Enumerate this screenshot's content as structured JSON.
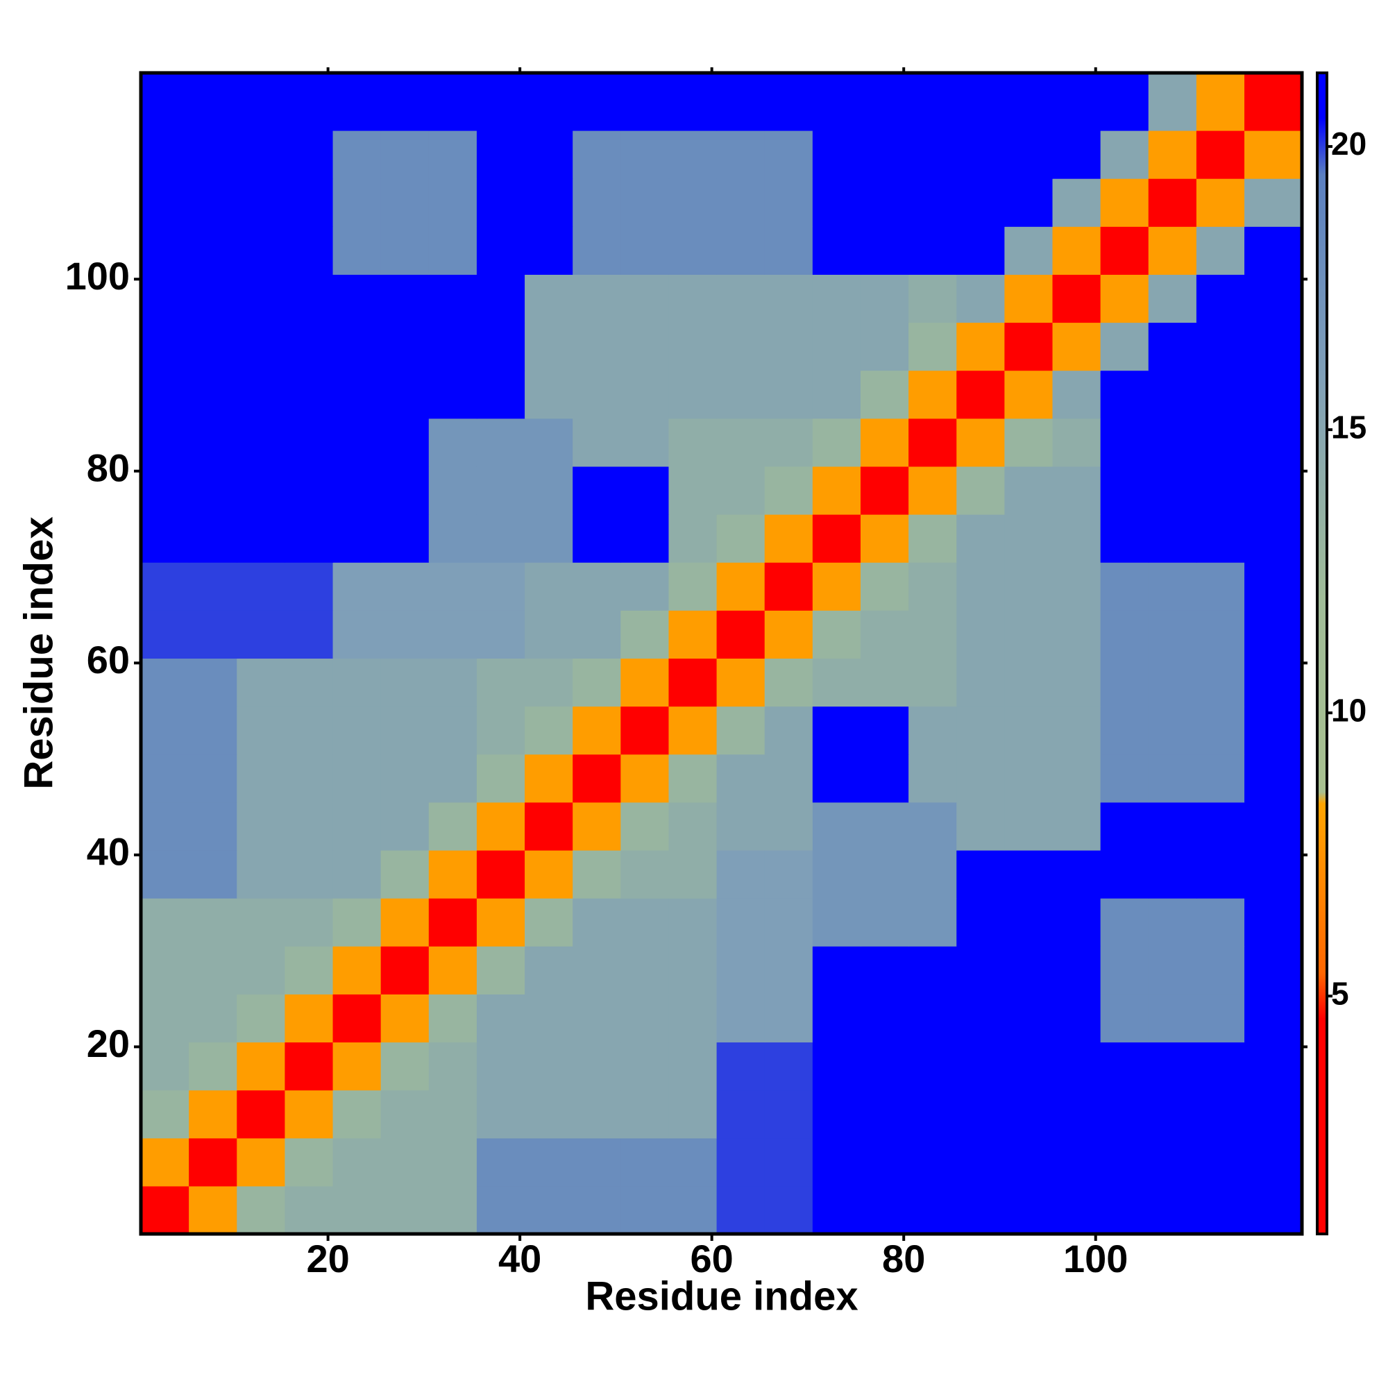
{
  "chart_data": {
    "type": "heatmap",
    "xlabel": "Residue index",
    "ylabel": "Residue index",
    "xbins": [
      0.5,
      5.5,
      10.5,
      15.5,
      20.5,
      25.5,
      30.5,
      35.5,
      40.5,
      45.5,
      50.5,
      55.5,
      60.5,
      65.5,
      70.5,
      75.5,
      80.5,
      85.5,
      90.5,
      95.5,
      100.5,
      105.5,
      110.5,
      115.5,
      121.5
    ],
    "ybins": [
      0.5,
      5.5,
      10.5,
      15.5,
      20.5,
      25.5,
      30.5,
      35.5,
      40.5,
      45.5,
      50.5,
      55.5,
      60.5,
      65.5,
      70.5,
      75.5,
      80.5,
      85.5,
      90.5,
      95.5,
      100.5,
      105.5,
      110.5,
      115.5,
      121.5
    ],
    "xlim": [
      0.5,
      121.5
    ],
    "ylim": [
      0.5,
      121.5
    ],
    "xticks": [
      20,
      40,
      60,
      80,
      100
    ],
    "yticks": [
      20,
      40,
      60,
      80,
      100
    ],
    "clim": [
      0.8,
      21.3
    ],
    "cticks": [
      5,
      10,
      15,
      20
    ],
    "colorscale": [
      [
        0.8,
        "#ff0000"
      ],
      [
        4.6,
        "#ff0000"
      ],
      [
        5.4,
        "#ff6600"
      ],
      [
        8.4,
        "#ffa500"
      ],
      [
        8.6,
        "#a8c090"
      ],
      [
        12,
        "#a0bc98"
      ],
      [
        16,
        "#7f9fb8"
      ],
      [
        19.5,
        "#5a7fc0"
      ],
      [
        20.5,
        "#0000ff"
      ],
      [
        21.3,
        "#0000ff"
      ]
    ],
    "z": [
      [
        3,
        8,
        13,
        14,
        14,
        14,
        14,
        18,
        18,
        18,
        18,
        18,
        20,
        20,
        21,
        21,
        21,
        21,
        21,
        21,
        21,
        21,
        21,
        21
      ],
      [
        8,
        3,
        8,
        13,
        14,
        14,
        14,
        18,
        18,
        18,
        18,
        18,
        20,
        20,
        21,
        21,
        21,
        21,
        21,
        21,
        21,
        21,
        21,
        21
      ],
      [
        13,
        8,
        3,
        8,
        13,
        14,
        14,
        15,
        15,
        15,
        15,
        15,
        20,
        20,
        21,
        21,
        21,
        21,
        21,
        21,
        21,
        21,
        21,
        21
      ],
      [
        14,
        13,
        8,
        3,
        8,
        13,
        14,
        15,
        15,
        15,
        15,
        15,
        20,
        20,
        21,
        21,
        21,
        21,
        21,
        21,
        21,
        21,
        21,
        21
      ],
      [
        14,
        14,
        13,
        8,
        3,
        8,
        13,
        15,
        15,
        15,
        15,
        15,
        16,
        16,
        21,
        21,
        21,
        21,
        21,
        21,
        18,
        18,
        18,
        21
      ],
      [
        14,
        14,
        14,
        13,
        8,
        3,
        8,
        13,
        15,
        15,
        15,
        15,
        16,
        16,
        21,
        21,
        21,
        21,
        21,
        21,
        18,
        18,
        18,
        21
      ],
      [
        14,
        14,
        14,
        14,
        13,
        8,
        3,
        8,
        13,
        15,
        15,
        15,
        16,
        16,
        17,
        17,
        17,
        21,
        21,
        21,
        18,
        18,
        18,
        21
      ],
      [
        18,
        18,
        15,
        15,
        15,
        13,
        8,
        3,
        8,
        13,
        14,
        14,
        16,
        16,
        17,
        17,
        17,
        21,
        21,
        21,
        21,
        21,
        21,
        21
      ],
      [
        18,
        18,
        15,
        15,
        15,
        15,
        13,
        8,
        3,
        8,
        13,
        14,
        15,
        15,
        17,
        17,
        17,
        15,
        15,
        15,
        21,
        21,
        21,
        21
      ],
      [
        18,
        18,
        15,
        15,
        15,
        15,
        15,
        13,
        8,
        3,
        8,
        13,
        15,
        15,
        21,
        21,
        15,
        15,
        15,
        15,
        18,
        18,
        18,
        21
      ],
      [
        18,
        18,
        15,
        15,
        15,
        15,
        15,
        14,
        13,
        8,
        3,
        8,
        13,
        15,
        21,
        21,
        15,
        15,
        15,
        15,
        18,
        18,
        18,
        21
      ],
      [
        18,
        18,
        15,
        15,
        15,
        15,
        15,
        14,
        14,
        13,
        8,
        3,
        8,
        13,
        14,
        14,
        14,
        15,
        15,
        15,
        18,
        18,
        18,
        21
      ],
      [
        20,
        20,
        20,
        20,
        16,
        16,
        16,
        16,
        15,
        15,
        13,
        8,
        3,
        8,
        13,
        14,
        14,
        15,
        15,
        15,
        18,
        18,
        18,
        21
      ],
      [
        20,
        20,
        20,
        20,
        16,
        16,
        16,
        16,
        15,
        15,
        15,
        13,
        8,
        3,
        8,
        13,
        14,
        15,
        15,
        15,
        18,
        18,
        18,
        21
      ],
      [
        21,
        21,
        21,
        21,
        21,
        21,
        17,
        17,
        17,
        21,
        21,
        14,
        13,
        8,
        3,
        8,
        13,
        15,
        15,
        15,
        21,
        21,
        21,
        21
      ],
      [
        21,
        21,
        21,
        21,
        21,
        21,
        17,
        17,
        17,
        21,
        21,
        14,
        14,
        13,
        8,
        3,
        8,
        13,
        15,
        15,
        21,
        21,
        21,
        21
      ],
      [
        21,
        21,
        21,
        21,
        21,
        21,
        17,
        17,
        17,
        15,
        15,
        14,
        14,
        14,
        13,
        8,
        3,
        8,
        13,
        14,
        21,
        21,
        21,
        21
      ],
      [
        21,
        21,
        21,
        21,
        21,
        21,
        21,
        21,
        15,
        15,
        15,
        15,
        15,
        15,
        15,
        13,
        8,
        3,
        8,
        15,
        21,
        21,
        21,
        21
      ],
      [
        21,
        21,
        21,
        21,
        21,
        21,
        21,
        21,
        15,
        15,
        15,
        15,
        15,
        15,
        15,
        15,
        13,
        8,
        3,
        8,
        15,
        21,
        21,
        21
      ],
      [
        21,
        21,
        21,
        21,
        21,
        21,
        21,
        21,
        15,
        15,
        15,
        15,
        15,
        15,
        15,
        15,
        14,
        15,
        8,
        3,
        8,
        15,
        21,
        21
      ],
      [
        21,
        21,
        21,
        21,
        18,
        18,
        18,
        21,
        21,
        18,
        18,
        18,
        18,
        18,
        21,
        21,
        21,
        21,
        15,
        8,
        3,
        8,
        15,
        21
      ],
      [
        21,
        21,
        21,
        21,
        18,
        18,
        18,
        21,
        21,
        18,
        18,
        18,
        18,
        18,
        21,
        21,
        21,
        21,
        21,
        15,
        8,
        3,
        8,
        15
      ],
      [
        21,
        21,
        21,
        21,
        18,
        18,
        18,
        21,
        21,
        18,
        18,
        18,
        18,
        18,
        21,
        21,
        21,
        21,
        21,
        21,
        15,
        8,
        3,
        8
      ],
      [
        21,
        21,
        21,
        21,
        21,
        21,
        21,
        21,
        21,
        21,
        21,
        21,
        21,
        21,
        21,
        21,
        21,
        21,
        21,
        21,
        21,
        15,
        8,
        3
      ]
    ]
  }
}
